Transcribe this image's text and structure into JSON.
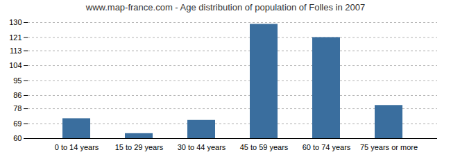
{
  "chart_data": {
    "type": "bar",
    "title": "www.map-france.com - Age distribution of population of Folles in 2007",
    "categories": [
      "0 to 14 years",
      "15 to 29 years",
      "30 to 44 years",
      "45 to 59 years",
      "60 to 74 years",
      "75 years or more"
    ],
    "values": [
      72,
      63,
      71,
      129,
      121,
      80
    ],
    "color": "#3a6e9e",
    "ylim": [
      60,
      130
    ],
    "yticks": [
      60,
      69,
      78,
      86,
      95,
      104,
      113,
      121,
      130
    ],
    "grid": true
  }
}
